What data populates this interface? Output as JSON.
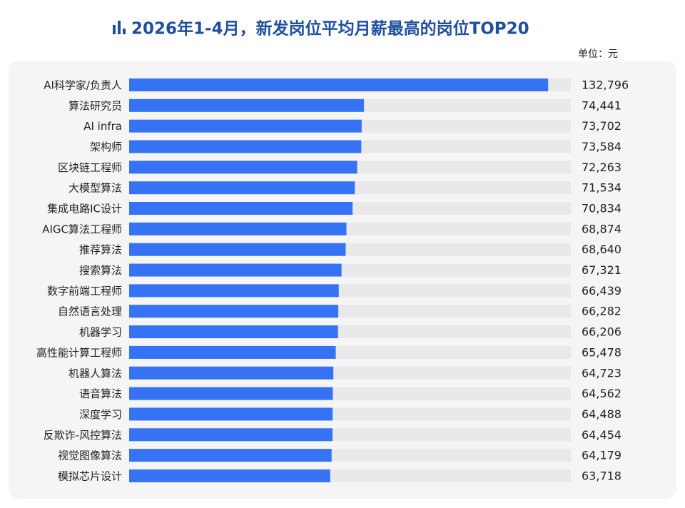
{
  "chart_data": {
    "type": "bar",
    "orientation": "horizontal",
    "title": "2026年1-4月，新发岗位平均月薪最高的岗位TOP20",
    "unit": "单位：元",
    "categories": [
      "AI科学家/负责人",
      "算法研究员",
      "AI infra",
      "架构师",
      "区块链工程师",
      "大模型算法",
      "集成电路IC设计",
      "AIGC算法工程师",
      "推荐算法",
      "搜索算法",
      "数字前端工程师",
      "自然语言处理",
      "机器学习",
      "高性能计算工程师",
      "机器人算法",
      "语音算法",
      "深度学习",
      "反欺诈-风控算法",
      "视觉图像算法",
      "模拟芯片设计"
    ],
    "values": [
      132796,
      74441,
      73702,
      73584,
      72263,
      71534,
      70834,
      68874,
      68640,
      67321,
      66439,
      66282,
      66206,
      65478,
      64723,
      64562,
      64488,
      64454,
      64179,
      63718
    ],
    "value_labels": [
      "132,796",
      "74,441",
      "73,702",
      "73,584",
      "72,263",
      "71,534",
      "70,834",
      "68,874",
      "68,640",
      "67,321",
      "66,439",
      "66,282",
      "66,206",
      "65,478",
      "64,723",
      "64,562",
      "64,488",
      "64,454",
      "64,179",
      "63,718"
    ],
    "color": "#3672f4",
    "xlim": [
      0,
      140000
    ]
  }
}
